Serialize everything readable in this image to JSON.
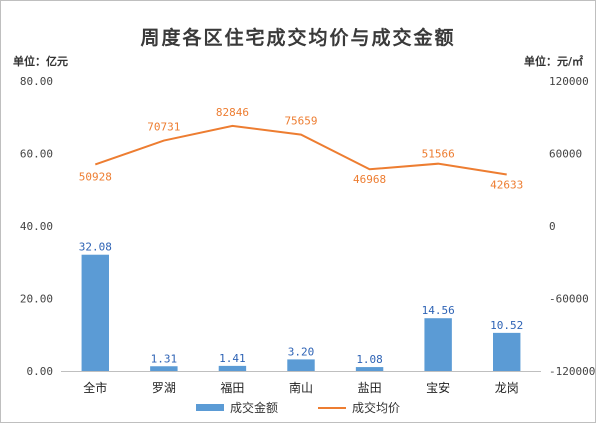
{
  "title": "周度各区住宅成交均价与成交金额",
  "unit_left": "单位：亿元",
  "unit_right": "单位：元/㎡",
  "colors": {
    "bar": "#5b9bd5",
    "line": "#ed7d31",
    "bar_label": "#2e63b5",
    "line_label": "#ed7d31"
  },
  "chart_data": {
    "type": "bar",
    "title": "周度各区住宅成交均价与成交金额",
    "categories": [
      "全市",
      "罗湖",
      "福田",
      "南山",
      "盐田",
      "宝安",
      "龙岗"
    ],
    "series": [
      {
        "name": "成交金额",
        "type": "bar",
        "axis": "left",
        "values": [
          32.08,
          1.31,
          1.41,
          3.2,
          1.08,
          14.56,
          10.52
        ],
        "labels": [
          "32.08",
          "1.31",
          "1.41",
          "3.20",
          "1.08",
          "14.56",
          "10.52"
        ]
      },
      {
        "name": "成交均价",
        "type": "line",
        "axis": "right",
        "values": [
          50928,
          70731,
          82846,
          75659,
          46968,
          51566,
          42633
        ],
        "labels": [
          "50928",
          "70731",
          "82846",
          "75659",
          "46968",
          "51566",
          "42633"
        ]
      }
    ],
    "left_axis": {
      "min": 0,
      "max": 80,
      "ticks": [
        "0.00",
        "20.00",
        "40.00",
        "60.00",
        "80.00"
      ]
    },
    "right_axis": {
      "min": -120000,
      "max": 120000,
      "ticks": [
        "-120000",
        "-60000",
        "0",
        "60000",
        "120000"
      ]
    },
    "grid": false,
    "legend": "bottom"
  }
}
